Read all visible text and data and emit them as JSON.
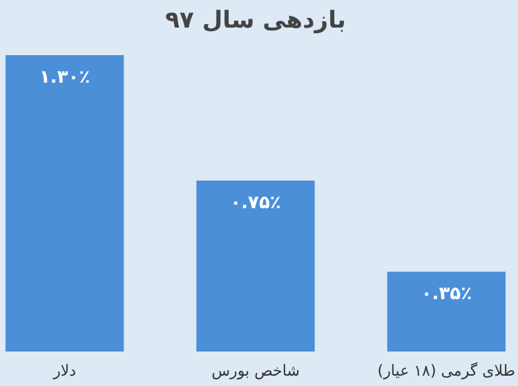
{
  "chart_data": {
    "type": "bar",
    "title": "بازدهی سال ۹۷",
    "categories": [
      "دلار",
      "شاخص بورس",
      "طلای گرمی (۱۸ عیار)"
    ],
    "values": [
      1.3,
      0.75,
      0.35
    ],
    "value_labels": [
      "۱.۳۰٪",
      "۰.۷۵٪",
      "۰.۳۵٪"
    ],
    "color": "#4a8fd8",
    "grid": false
  }
}
